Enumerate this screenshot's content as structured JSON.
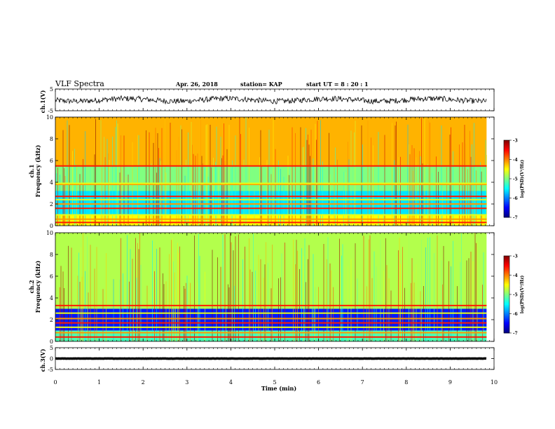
{
  "header": {
    "title": "VLF Spectra",
    "date": "Apr. 26, 2018",
    "station": "station= KAP",
    "start": "start  UT =   8  : 20 : 1"
  },
  "chart_data": [
    {
      "type": "line",
      "panel": "ch1-waveform",
      "ylabel": "ch.1(V)",
      "ylim": [
        -5,
        5
      ],
      "yticks": [
        "5",
        "-5"
      ],
      "xlim": [
        0,
        10
      ],
      "data_extent_min": 9.83,
      "trace": {
        "baseline": 0,
        "min": -2.5,
        "max": 2.5
      }
    },
    {
      "type": "heatmap",
      "panel": "ch1-spectrogram",
      "ylabel": "ch.1\nFrequency (kHz)",
      "ylim": [
        0,
        10
      ],
      "yticks": [
        "0",
        "2",
        "4",
        "6",
        "8",
        "10"
      ],
      "xlim": [
        0,
        10
      ],
      "data_extent_min": 9.83,
      "colorbar": {
        "label": "log(PSD)(V²/Hz)",
        "range": [
          -7,
          -3
        ],
        "ticks": [
          "-3",
          "-4",
          "-5",
          "-6",
          "-7"
        ]
      },
      "bands_khz": [
        {
          "f0": 0,
          "f1": 1.0,
          "level": -4.5
        },
        {
          "f0": 1.0,
          "f1": 3.2,
          "level": -5.6
        },
        {
          "f0": 3.2,
          "f1": 5.5,
          "level": -5.0
        },
        {
          "f0": 5.5,
          "f1": 10,
          "level": -4.2
        }
      ],
      "lines_khz": [
        0.3,
        0.6,
        1.0,
        1.6,
        2.0,
        2.4,
        2.7,
        3.8,
        3.9,
        5.5
      ]
    },
    {
      "type": "heatmap",
      "panel": "ch2-spectrogram",
      "ylabel": "ch.2\nFrequency (kHz)",
      "ylim": [
        0,
        10
      ],
      "yticks": [
        "0",
        "2",
        "4",
        "6",
        "8",
        "10"
      ],
      "xlim": [
        0,
        10
      ],
      "data_extent_min": 9.83,
      "colorbar": {
        "label": "log(PSD)(V²/Hz)",
        "range": [
          -7,
          -3
        ],
        "ticks": [
          "-3",
          "-4",
          "-5",
          "-6",
          "-7"
        ]
      },
      "bands_khz": [
        {
          "f0": 0,
          "f1": 1.0,
          "level": -5.2
        },
        {
          "f0": 1.0,
          "f1": 3.0,
          "level": -6.4
        },
        {
          "f0": 3.0,
          "f1": 10,
          "level": -4.8
        }
      ],
      "lines_khz": [
        0.4,
        0.8,
        1.3,
        1.7,
        2.1,
        2.6,
        3.3
      ]
    },
    {
      "type": "line",
      "panel": "ch3-waveform",
      "ylabel": "ch.3(V)",
      "ylim": [
        -5,
        5
      ],
      "yticks": [
        "5",
        "0",
        "-5"
      ],
      "xlim": [
        0,
        10
      ],
      "data_extent_min": 9.83,
      "trace": {
        "baseline": 0,
        "min": -0.2,
        "max": 0.2
      }
    }
  ],
  "xaxis": {
    "label": "Time (min)",
    "ticks": [
      "0",
      "1",
      "2",
      "3",
      "4",
      "5",
      "6",
      "7",
      "8",
      "9",
      "10"
    ]
  }
}
